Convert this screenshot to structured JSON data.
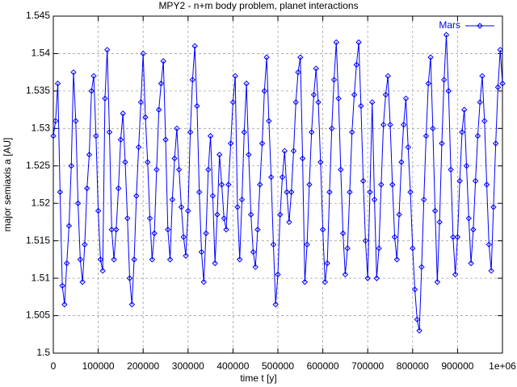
{
  "chart_data": {
    "type": "line",
    "title": "MPY2 - n+m body problem, planet interactions",
    "x_label": "time t [y]",
    "y_label": "major semiaxis a [AU]",
    "x": [
      0,
      5000,
      10000,
      15000,
      20000,
      25000,
      30000,
      35000,
      40000,
      45000,
      50000,
      55000,
      60000,
      65000,
      70000,
      75000,
      80000,
      85000,
      90000,
      95000,
      100000,
      105000,
      110000,
      115000,
      120000,
      125000,
      130000,
      135000,
      140000,
      145000,
      150000,
      155000,
      160000,
      165000,
      170000,
      175000,
      180000,
      185000,
      190000,
      195000,
      200000,
      205000,
      210000,
      215000,
      220000,
      225000,
      230000,
      235000,
      240000,
      245000,
      250000,
      255000,
      260000,
      265000,
      270000,
      275000,
      280000,
      285000,
      290000,
      295000,
      300000,
      305000,
      310000,
      315000,
      320000,
      325000,
      330000,
      335000,
      340000,
      345000,
      350000,
      355000,
      360000,
      365000,
      370000,
      375000,
      380000,
      385000,
      390000,
      395000,
      400000,
      405000,
      410000,
      415000,
      420000,
      425000,
      430000,
      435000,
      440000,
      445000,
      450000,
      455000,
      460000,
      465000,
      470000,
      475000,
      480000,
      485000,
      490000,
      495000,
      500000,
      505000,
      510000,
      515000,
      520000,
      525000,
      530000,
      535000,
      540000,
      545000,
      550000,
      555000,
      560000,
      565000,
      570000,
      575000,
      580000,
      585000,
      590000,
      595000,
      600000,
      605000,
      610000,
      615000,
      620000,
      625000,
      630000,
      635000,
      640000,
      645000,
      650000,
      655000,
      660000,
      665000,
      670000,
      675000,
      680000,
      685000,
      690000,
      695000,
      700000,
      705000,
      710000,
      715000,
      720000,
      725000,
      730000,
      735000,
      740000,
      745000,
      750000,
      755000,
      760000,
      765000,
      770000,
      775000,
      780000,
      785000,
      790000,
      795000,
      800000,
      805000,
      810000,
      815000,
      820000,
      825000,
      830000,
      835000,
      840000,
      845000,
      850000,
      855000,
      860000,
      865000,
      870000,
      875000,
      880000,
      885000,
      890000,
      895000,
      900000,
      905000,
      910000,
      915000,
      920000,
      925000,
      930000,
      935000,
      940000,
      945000,
      950000,
      955000,
      960000,
      965000,
      970000,
      975000,
      980000,
      985000,
      990000,
      995000,
      1000000
    ],
    "series": [
      {
        "name": "Mars",
        "color": "#0000ff",
        "values": [
          1.529,
          1.531,
          1.536,
          1.5215,
          1.509,
          1.5065,
          1.512,
          1.517,
          1.525,
          1.5375,
          1.531,
          1.52,
          1.5125,
          1.5095,
          1.5145,
          1.522,
          1.5265,
          1.535,
          1.537,
          1.529,
          1.519,
          1.5125,
          1.511,
          1.534,
          1.5405,
          1.5295,
          1.5165,
          1.5125,
          1.5165,
          1.522,
          1.5285,
          1.532,
          1.5255,
          1.518,
          1.51,
          1.5065,
          1.5125,
          1.521,
          1.5275,
          1.5335,
          1.54,
          1.5315,
          1.5255,
          1.518,
          1.5125,
          1.516,
          1.5245,
          1.5325,
          1.536,
          1.539,
          1.5285,
          1.5165,
          1.5125,
          1.5205,
          1.526,
          1.53,
          1.5245,
          1.5195,
          1.5155,
          1.513,
          1.519,
          1.5295,
          1.5365,
          1.541,
          1.533,
          1.5215,
          1.5135,
          1.5095,
          1.516,
          1.5245,
          1.529,
          1.521,
          1.512,
          1.5185,
          1.5265,
          1.5225,
          1.518,
          1.5165,
          1.5225,
          1.528,
          1.5335,
          1.537,
          1.5195,
          1.5125,
          1.5205,
          1.5295,
          1.536,
          1.5265,
          1.5185,
          1.5135,
          1.5115,
          1.5165,
          1.5225,
          1.528,
          1.535,
          1.5395,
          1.531,
          1.5235,
          1.5145,
          1.5065,
          1.5105,
          1.5185,
          1.5235,
          1.527,
          1.5215,
          1.5175,
          1.5215,
          1.527,
          1.5335,
          1.5375,
          1.5395,
          1.526,
          1.5095,
          1.5145,
          1.5225,
          1.5295,
          1.5345,
          1.538,
          1.5335,
          1.5255,
          1.5165,
          1.5095,
          1.512,
          1.5215,
          1.53,
          1.5365,
          1.5415,
          1.534,
          1.5245,
          1.516,
          1.5105,
          1.514,
          1.5215,
          1.5295,
          1.5345,
          1.5385,
          1.5415,
          1.533,
          1.523,
          1.515,
          1.51,
          1.5215,
          1.5335,
          1.5205,
          1.51,
          1.514,
          1.5225,
          1.5305,
          1.5345,
          1.537,
          1.5305,
          1.5225,
          1.5155,
          1.5125,
          1.5185,
          1.5255,
          1.5305,
          1.534,
          1.5275,
          1.5215,
          1.514,
          1.5085,
          1.5045,
          1.503,
          1.5115,
          1.5205,
          1.529,
          1.536,
          1.5395,
          1.53,
          1.519,
          1.5095,
          1.5175,
          1.528,
          1.5365,
          1.5425,
          1.535,
          1.5245,
          1.5155,
          1.5105,
          1.5155,
          1.523,
          1.5295,
          1.5325,
          1.525,
          1.518,
          1.512,
          1.5165,
          1.523,
          1.529,
          1.5335,
          1.537,
          1.531,
          1.5225,
          1.5145,
          1.511,
          1.5195,
          1.528,
          1.5355,
          1.5405,
          1.536
        ]
      }
    ],
    "xlim": [
      0,
      1000000
    ],
    "ylim": [
      1.5,
      1.545
    ],
    "xticks": [
      0,
      100000,
      200000,
      300000,
      400000,
      500000,
      600000,
      700000,
      800000,
      900000,
      {
        "value": 1000000,
        "label": "1e+06"
      }
    ],
    "yticks": [
      1.5,
      1.505,
      1.51,
      1.515,
      1.52,
      1.525,
      1.53,
      1.535,
      1.54,
      1.545
    ],
    "grid": true,
    "legend": "top-right"
  }
}
